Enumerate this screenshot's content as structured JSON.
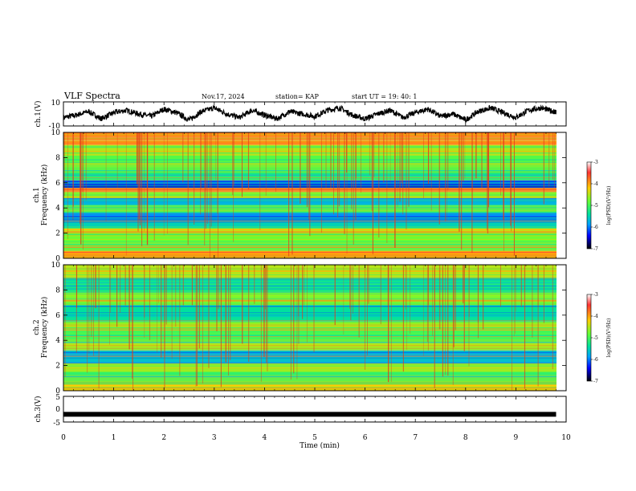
{
  "header": {
    "title": "VLF Spectra",
    "date": "Nov.17, 2024",
    "station": "station= KAP",
    "start": "start  UT  =   19: 40: 1"
  },
  "chart_data": [
    {
      "type": "line",
      "ylabel": "ch.1(V)",
      "ylim": [
        -10,
        10
      ],
      "yticks": [
        "10",
        "-10"
      ],
      "xlim": [
        0,
        10
      ],
      "x": [
        0.0,
        0.25,
        0.5,
        0.75,
        1.0,
        1.25,
        1.5,
        1.75,
        2.0,
        2.25,
        2.5,
        2.75,
        3.0,
        3.25,
        3.5,
        3.75,
        4.0,
        4.25,
        4.5,
        4.75,
        5.0,
        5.25,
        5.5,
        5.75,
        6.0,
        6.25,
        6.5,
        6.75,
        7.0,
        7.25,
        7.5,
        7.75,
        8.0,
        8.25,
        8.5,
        8.75,
        9.0,
        9.25,
        9.5,
        9.75,
        9.8
      ],
      "y": [
        -3,
        -1,
        2,
        -4,
        1,
        3,
        0,
        -2,
        4,
        1,
        -5,
        2,
        5,
        0,
        -3,
        3,
        -1,
        -4,
        2,
        0,
        -2,
        3,
        5,
        -1,
        -4,
        0,
        3,
        -3,
        1,
        4,
        -2,
        0,
        -5,
        2,
        5,
        1,
        -3,
        3,
        5,
        2,
        1
      ]
    },
    {
      "type": "heatmap",
      "ylabel": "ch.1\nFrequency (kHz)",
      "ylim": [
        0,
        10
      ],
      "yticks": [
        "0",
        "2",
        "4",
        "6",
        "8",
        "10"
      ],
      "xlim": [
        0,
        10
      ],
      "colorbar": {
        "label": "log(PSD)(V²/Hz)",
        "range": [
          -7,
          -3
        ],
        "ticks": [
          "-3",
          "-4",
          "-5",
          "-6",
          "-7"
        ]
      },
      "bands": [
        {
          "f": [
            0.0,
            0.6
          ],
          "v": -4.0
        },
        {
          "f": [
            0.6,
            1.2
          ],
          "v": -5.0
        },
        {
          "f": [
            1.2,
            2.0
          ],
          "v": -4.8
        },
        {
          "f": [
            2.0,
            2.4
          ],
          "v": -4.2
        },
        {
          "f": [
            2.4,
            2.9
          ],
          "v": -5.5
        },
        {
          "f": [
            2.9,
            3.6
          ],
          "v": -5.9
        },
        {
          "f": [
            3.6,
            4.2
          ],
          "v": -5.0
        },
        {
          "f": [
            4.2,
            4.8
          ],
          "v": -5.7
        },
        {
          "f": [
            4.8,
            5.3
          ],
          "v": -4.7
        },
        {
          "f": [
            5.3,
            5.6
          ],
          "v": -4.0
        },
        {
          "f": [
            5.6,
            6.2
          ],
          "v": -6.1
        },
        {
          "f": [
            6.2,
            7.0
          ],
          "v": -5.2
        },
        {
          "f": [
            7.0,
            8.2
          ],
          "v": -4.9
        },
        {
          "f": [
            8.2,
            9.0
          ],
          "v": -4.5
        },
        {
          "f": [
            9.0,
            10.0
          ],
          "v": -3.9
        }
      ]
    },
    {
      "type": "heatmap",
      "ylabel": "ch.2\nFrequency (kHz)",
      "ylim": [
        0,
        10
      ],
      "yticks": [
        "0",
        "2",
        "4",
        "6",
        "8",
        "10"
      ],
      "xlim": [
        0,
        10
      ],
      "colorbar": {
        "label": "log(PSD)(V²/Hz)",
        "range": [
          -7,
          -3
        ],
        "ticks": [
          "-3",
          "-4",
          "-5",
          "-6",
          "-7"
        ]
      },
      "bands": [
        {
          "f": [
            0.0,
            0.5
          ],
          "v": -4.2
        },
        {
          "f": [
            0.5,
            1.5
          ],
          "v": -5.0
        },
        {
          "f": [
            1.5,
            2.2
          ],
          "v": -4.6
        },
        {
          "f": [
            2.2,
            3.2
          ],
          "v": -5.7
        },
        {
          "f": [
            3.2,
            3.8
          ],
          "v": -4.5
        },
        {
          "f": [
            3.8,
            4.8
          ],
          "v": -5.0
        },
        {
          "f": [
            4.8,
            5.5
          ],
          "v": -4.6
        },
        {
          "f": [
            5.5,
            6.8
          ],
          "v": -5.4
        },
        {
          "f": [
            6.8,
            7.8
          ],
          "v": -4.7
        },
        {
          "f": [
            7.8,
            9.0
          ],
          "v": -5.3
        },
        {
          "f": [
            9.0,
            10.0
          ],
          "v": -4.5
        }
      ]
    },
    {
      "type": "line",
      "ylabel": "ch.3(V)",
      "ylim": [
        -5,
        5
      ],
      "yticks": [
        "5",
        "0",
        "-5"
      ],
      "xlim": [
        0,
        10
      ],
      "x": [
        0,
        9.8
      ],
      "y": [
        -2,
        -2
      ],
      "xlabel": "Time (min)",
      "xticks": [
        "0",
        "1",
        "2",
        "3",
        "4",
        "5",
        "6",
        "7",
        "8",
        "9",
        "10"
      ]
    }
  ]
}
